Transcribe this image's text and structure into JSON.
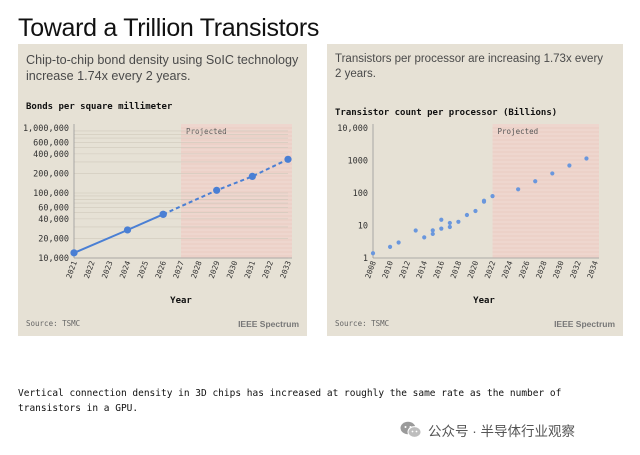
{
  "page_title": "Toward a Trillion Transistors",
  "caption": "Vertical connection density in 3D chips has increased at roughly the same rate as the number of transistors in a GPU.",
  "watermark": "公众号 · 半导体行业观察",
  "colors": {
    "accent": "#4a7fd4",
    "panel_bg": "#e6e1d5",
    "projected_bg": "#eed6ce"
  },
  "left": {
    "subtitle": "Chip-to-chip bond density using SoIC technology increase 1.74x every 2 years.",
    "source": "Source: TSMC",
    "brand": "IEEE Spectrum"
  },
  "right": {
    "subtitle": "Transistors per processor are increasing 1.73x every 2 years.",
    "source": "Source: TSMC",
    "brand": "IEEE Spectrum"
  },
  "chart_data": [
    {
      "type": "line",
      "title": "",
      "ylabel": "Bonds per square millimeter",
      "xlabel": "Year",
      "scale_y": "log",
      "ylim": [
        10000,
        1000000
      ],
      "xlim": [
        2021,
        2033
      ],
      "x_ticks": [
        "2021",
        "2022",
        "2023",
        "2024",
        "2025",
        "2026",
        "2027",
        "2028",
        "2029",
        "2030",
        "2031",
        "2032",
        "2033"
      ],
      "y_ticks": [
        {
          "value": 1000000,
          "label": "1,000,000"
        },
        {
          "value": 600000,
          "label": "600,000"
        },
        {
          "value": 400000,
          "label": "400,000"
        },
        {
          "value": 200000,
          "label": "200,000"
        },
        {
          "value": 100000,
          "label": "100,000"
        },
        {
          "value": 60000,
          "label": "60,000"
        },
        {
          "value": 40000,
          "label": "40,000"
        },
        {
          "value": 20000,
          "label": "20,000"
        },
        {
          "value": 10000,
          "label": "10,000"
        }
      ],
      "projected": {
        "label": "Projected",
        "from": 2027,
        "to": 2033
      },
      "grid": true,
      "series": [
        {
          "style": "solid",
          "points": [
            [
              2021,
              12000
            ],
            [
              2024,
              27000
            ],
            [
              2026,
              47000
            ]
          ]
        },
        {
          "style": "dashed",
          "points": [
            [
              2026,
              47000
            ],
            [
              2029,
              110000
            ],
            [
              2031,
              180000
            ],
            [
              2033,
              330000
            ]
          ]
        }
      ]
    },
    {
      "type": "scatter",
      "title": "",
      "ylabel": "Transistor count per processor (Billions)",
      "xlabel": "Year",
      "scale_y": "log",
      "ylim": [
        1,
        10000
      ],
      "xlim": [
        2008,
        2034
      ],
      "x_ticks": [
        "2008",
        "2010",
        "2012",
        "2014",
        "2016",
        "2018",
        "2020",
        "2022",
        "2024",
        "2026",
        "2028",
        "2030",
        "2032",
        "2034"
      ],
      "y_ticks": [
        {
          "value": 10000,
          "label": "10,000"
        },
        {
          "value": 1000,
          "label": "1000"
        },
        {
          "value": 100,
          "label": "100"
        },
        {
          "value": 10,
          "label": "10"
        },
        {
          "value": 1,
          "label": "1"
        }
      ],
      "projected": {
        "label": "Projected",
        "from": 2022,
        "to": 2034
      },
      "grid": false,
      "series": [
        {
          "points": [
            [
              2008,
              1.4
            ],
            [
              2010,
              2.2
            ],
            [
              2011,
              3
            ],
            [
              2013,
              7
            ],
            [
              2014,
              4.3
            ],
            [
              2015,
              5.5
            ],
            [
              2015,
              7.1
            ],
            [
              2016,
              8
            ],
            [
              2016,
              15
            ],
            [
              2017,
              12
            ],
            [
              2017,
              9
            ],
            [
              2018,
              13
            ],
            [
              2019,
              21
            ],
            [
              2020,
              28
            ],
            [
              2021,
              54
            ],
            [
              2021,
              58
            ],
            [
              2022,
              80
            ],
            [
              2025,
              130
            ],
            [
              2027,
              230
            ],
            [
              2029,
              400
            ],
            [
              2031,
              700
            ],
            [
              2033,
              1150
            ]
          ]
        }
      ]
    }
  ]
}
